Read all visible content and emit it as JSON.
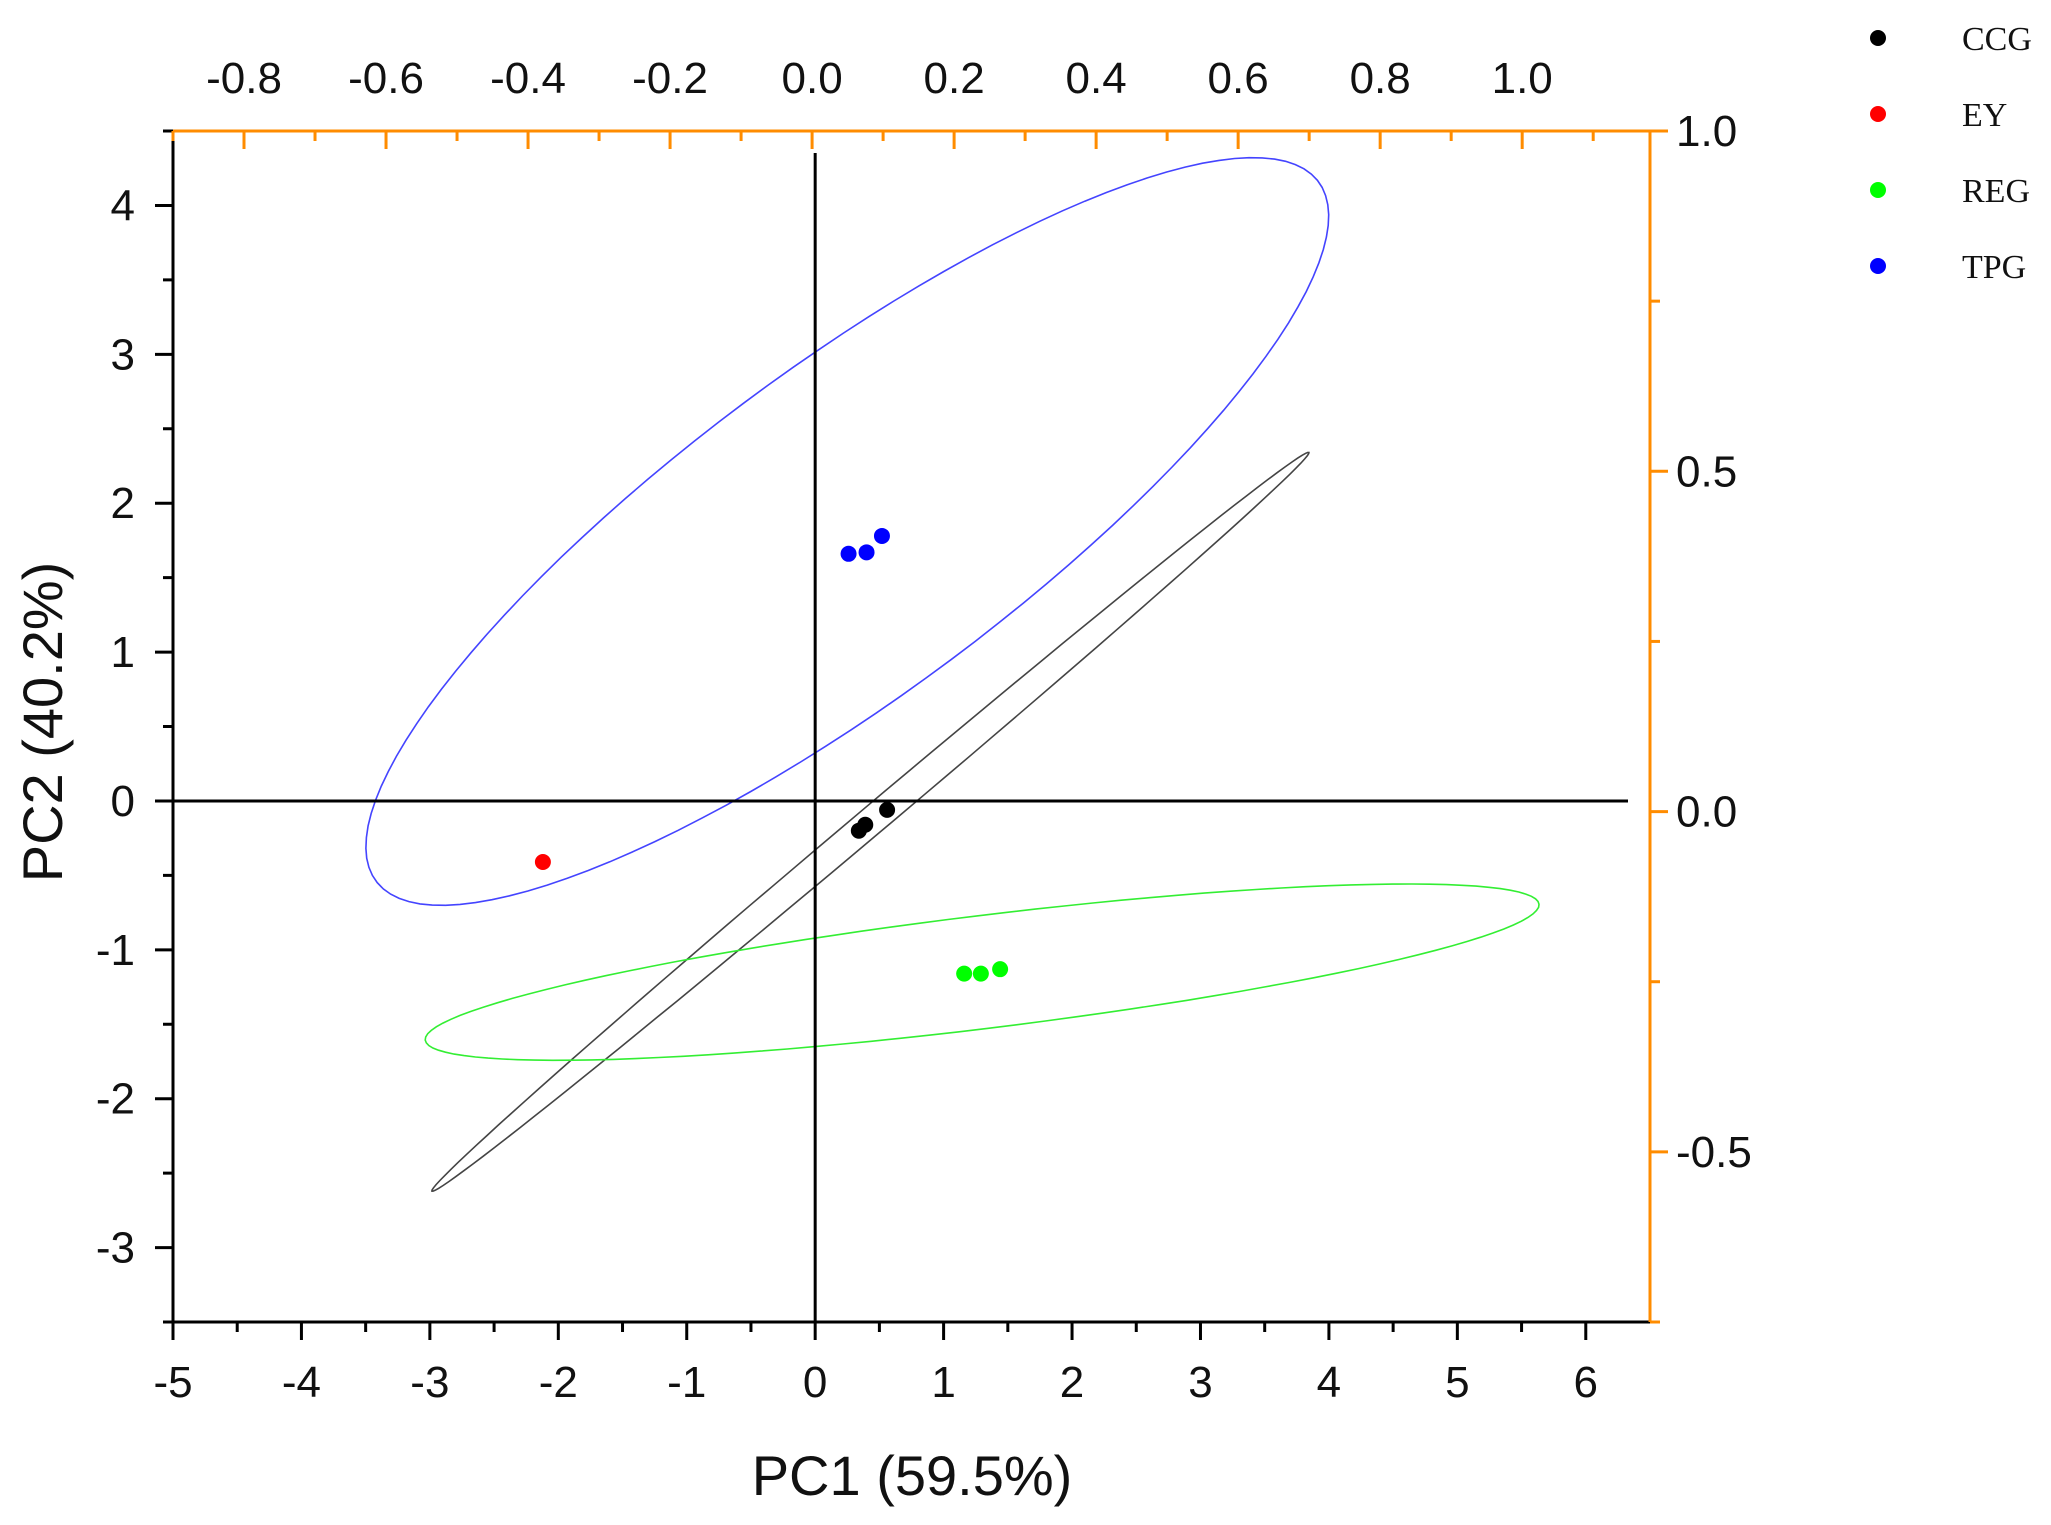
{
  "chart_data": {
    "type": "scatter",
    "title": "",
    "xlabel": "PC1 (59.5%)",
    "ylabel": "PC2 (40.2%)",
    "xlim": [
      -5,
      6.5
    ],
    "ylim": [
      -3.5,
      4.5
    ],
    "x_ticks": [
      -5,
      -4,
      -3,
      -2,
      -1,
      0,
      1,
      2,
      3,
      4,
      5,
      6
    ],
    "x_tick_labels": [
      "-5",
      "-4",
      "-3",
      "-2",
      "-1",
      "0",
      "1",
      "2",
      "3",
      "4",
      "5",
      "6"
    ],
    "y_ticks": [
      -3,
      -2,
      -1,
      0,
      1,
      2,
      3,
      4
    ],
    "y_tick_labels": [
      "-3",
      "-2",
      "-1",
      "0",
      "1",
      "2",
      "3",
      "4"
    ],
    "top_axis": {
      "range": [
        -0.9,
        1.18
      ],
      "ticks": [
        -0.8,
        -0.6,
        -0.4,
        -0.2,
        0.0,
        0.2,
        0.4,
        0.6,
        0.8,
        1.0
      ],
      "tick_labels": [
        "-0.8",
        "-0.6",
        "-0.4",
        "-0.2",
        "0.0",
        "0.2",
        "0.4",
        "0.6",
        "0.8",
        "1.0"
      ],
      "color": "#ff8c00"
    },
    "right_axis": {
      "range": [
        -0.75,
        1.0
      ],
      "ticks": [
        -0.5,
        0.0,
        0.5,
        1.0
      ],
      "tick_labels": [
        "-0.5",
        "0.0",
        "0.5",
        "1.0"
      ],
      "color": "#ff8c00"
    },
    "reference_lines": {
      "x": 0,
      "y": 0
    },
    "series": [
      {
        "name": "CCG",
        "color": "#000000",
        "points": [
          [
            0.34,
            -0.2
          ],
          [
            0.39,
            -0.16
          ],
          [
            0.56,
            -0.06
          ]
        ],
        "ellipse": {
          "center": [
            0.43,
            -0.14
          ],
          "semi_major": 4.22,
          "semi_minor": 0.1,
          "angle_deg": 36
        },
        "ellipse_color": "#444444"
      },
      {
        "name": "EY",
        "color": "#ff0000",
        "points": [
          [
            -2.12,
            -0.41
          ]
        ]
      },
      {
        "name": "REG",
        "color": "#00ff00",
        "points": [
          [
            1.16,
            -1.16
          ],
          [
            1.29,
            -1.16
          ],
          [
            1.44,
            -1.13
          ]
        ],
        "ellipse": {
          "center": [
            1.3,
            -1.15
          ],
          "semi_major": 4.36,
          "semi_minor": 0.38,
          "angle_deg": 6
        },
        "ellipse_color": "#33ee33"
      },
      {
        "name": "TPG",
        "color": "#0000ff",
        "points": [
          [
            0.26,
            1.66
          ],
          [
            0.4,
            1.67
          ],
          [
            0.52,
            1.78
          ]
        ],
        "ellipse": {
          "center": [
            0.25,
            1.81
          ],
          "semi_major": 4.36,
          "semi_minor": 1.16,
          "angle_deg": 32
        },
        "ellipse_color": "#4444ff"
      }
    ],
    "legend": {
      "placement": "top-right",
      "entries": [
        "CCG",
        "EY",
        "REG",
        "TPG"
      ]
    }
  }
}
